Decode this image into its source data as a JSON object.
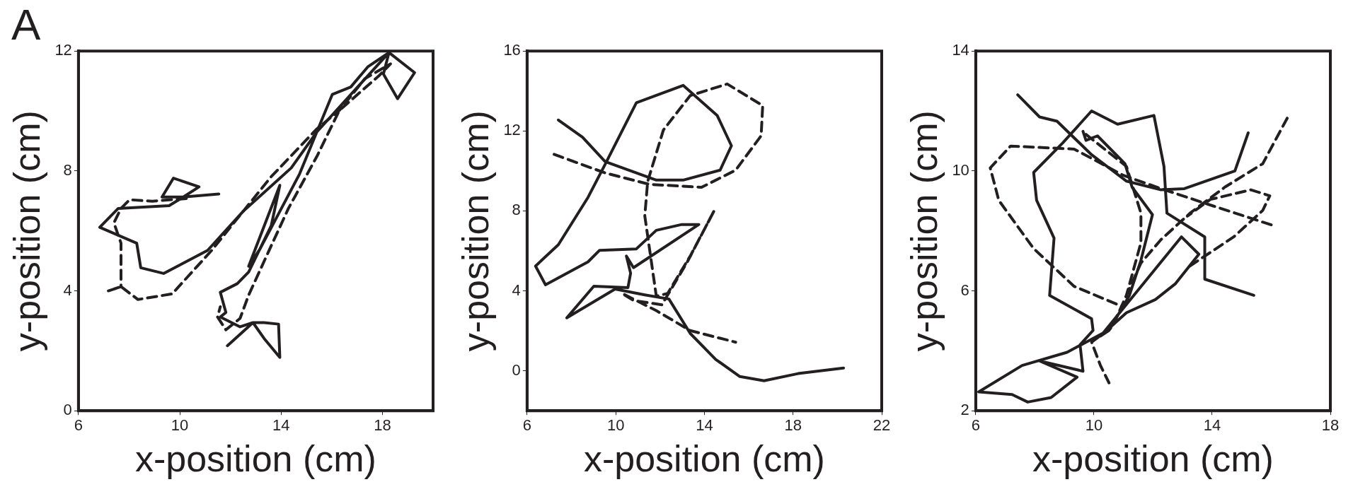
{
  "chart_data": [
    {
      "type": "line",
      "annotations": [
        "A"
      ],
      "xlabel": "x-position (cm)",
      "ylabel": "y-position (cm)",
      "xlim": [
        6,
        20
      ],
      "ylim": [
        0,
        12
      ],
      "xticks": [
        6,
        10,
        14,
        18
      ],
      "yticks": [
        0,
        4,
        8,
        12
      ],
      "series": [
        {
          "color": "#231f20",
          "line_style": "solid",
          "x": [
            11.54,
            10.14,
            10.76,
            9.75,
            9.3,
            10.14,
            9.58,
            7.57,
            6.84,
            8.3,
            8.46,
            9.36,
            11.1,
            12.5,
            14.4,
            15.41,
            16.02,
            16.75,
            17.42,
            18.26,
            19.27,
            18.6,
            18.04,
            18.26,
            15.41,
            14.73,
            13.95,
            13.17,
            12.72,
            13.95,
            13.61,
            12.72,
            12.27,
            11.6,
            11.82,
            11.6,
            12.38,
            12.89,
            13.33,
            13.9,
            13.95,
            13.33,
            12.89,
            11.88
          ],
          "values": [
            7.23,
            7.13,
            7.47,
            7.76,
            7.13,
            7.13,
            6.84,
            6.75,
            6.12,
            5.59,
            4.77,
            4.58,
            5.35,
            6.65,
            8.1,
            9.3,
            10.55,
            10.8,
            11.47,
            11.95,
            11.28,
            10.41,
            11.23,
            11.95,
            9.3,
            7.9,
            6.65,
            5.4,
            4.82,
            7.52,
            6.17,
            4.63,
            4.24,
            3.95,
            3.28,
            3.13,
            2.8,
            2.94,
            2.94,
            2.89,
            1.78,
            2.41,
            2.94,
            2.17
          ]
        },
        {
          "color": "#231f20",
          "line_style": "dashed",
          "x": [
            10.26,
            8.91,
            8.02,
            7.68,
            7.4,
            7.68,
            7.68,
            7.18,
            7.68,
            8.35,
            9.7,
            11.26,
            12.5,
            13.61,
            15.41,
            16.3,
            17.31,
            18.32,
            17.87,
            16.3,
            15.41,
            14.29,
            13.5,
            12.72,
            12.38,
            11.82,
            11.49,
            11.6
          ],
          "values": [
            7.08,
            6.99,
            7.04,
            6.75,
            6.27,
            5.59,
            4.14,
            4.0,
            4.14,
            3.71,
            3.9,
            5.35,
            6.65,
            7.81,
            9.4,
            10.02,
            11.08,
            11.57,
            11.18,
            10.02,
            8.48,
            6.75,
            5.3,
            3.86,
            3.08,
            2.7,
            3.13,
            3.47
          ]
        }
      ]
    },
    {
      "type": "line",
      "xlabel": "x-position (cm)",
      "ylabel": "y-position (cm)",
      "xlim": [
        6,
        22
      ],
      "ylim": [
        -2,
        16
      ],
      "xticks": [
        6,
        10,
        14,
        18,
        22
      ],
      "yticks": [
        0,
        4,
        8,
        12,
        16
      ],
      "series": [
        {
          "color": "#231f20",
          "line_style": "solid",
          "x": [
            7.41,
            8.5,
            9.52,
            11.83,
            13.04,
            14.71,
            15.22,
            14.58,
            13.04,
            10.93,
            9.52,
            8.75,
            7.41,
            6.38,
            6.83,
            8.75,
            9.27,
            10.93,
            11.83,
            12.98,
            13.75,
            10.8,
            10.48,
            10.67,
            10.55,
            9.01,
            7.79,
            9.97,
            11.31,
            12.4,
            13.36,
            14.51,
            15.6,
            16.69,
            18.23,
            20.28
          ],
          "values": [
            12.55,
            11.69,
            10.47,
            9.54,
            9.54,
            10.04,
            11.26,
            12.77,
            14.28,
            13.41,
            10.33,
            8.68,
            6.31,
            5.24,
            4.3,
            5.45,
            6.03,
            6.1,
            7.03,
            7.32,
            7.32,
            5.16,
            5.74,
            4.88,
            4.16,
            4.23,
            2.65,
            4.09,
            3.8,
            3.59,
            1.87,
            0.57,
            -0.29,
            -0.5,
            -0.14,
            0.14
          ]
        },
        {
          "color": "#231f20",
          "line_style": "dashed",
          "x": [
            7.22,
            9.52,
            11.51,
            13.87,
            15.41,
            16.56,
            16.63,
            15.03,
            13.36,
            12.15,
            11.44,
            11.31,
            11.57,
            11.83,
            12.34,
            13.36,
            14.45,
            13.23,
            12.08,
            10.8,
            10.29,
            11.83,
            13.36,
            15.41
          ],
          "values": [
            10.83,
            9.9,
            9.33,
            9.18,
            10.04,
            11.76,
            13.27,
            14.35,
            13.77,
            12.05,
            9.47,
            7.75,
            5.74,
            3.73,
            3.87,
            5.74,
            8.03,
            5.45,
            3.3,
            3.52,
            3.87,
            3.01,
            2.01,
            1.43
          ]
        }
      ]
    },
    {
      "type": "line",
      "xlabel": "x-position (cm)",
      "ylabel": "y-position (cm)",
      "xlim": [
        6,
        18
      ],
      "ylim": [
        2,
        14
      ],
      "xticks": [
        6,
        10,
        14,
        18
      ],
      "yticks": [
        2,
        6,
        10,
        14
      ],
      "series": [
        {
          "color": "#231f20",
          "line_style": "solid",
          "x": [
            15.22,
            14.77,
            13.06,
            12.27,
            11.1,
            9.92,
            8.75,
            8.16,
            7.42
          ],
          "values": [
            11.27,
            10.0,
            9.41,
            9.37,
            9.66,
            10.54,
            11.66,
            11.8,
            12.54
          ]
        },
        {
          "color": "#231f20",
          "line_style": "solid",
          "x": [
            9.63,
            9.73,
            10.12,
            11.05,
            11.29,
            11.98,
            11.59,
            11.2,
            10.51,
            10.22,
            11.1,
            12.08,
            12.76,
            13.55,
            12.96,
            10.31,
            9.09,
            7.57,
            6.1,
            7.23,
            7.76,
            8.55,
            9.43,
            8.16,
            9.63,
            9.53,
            9.97,
            9.92,
            8.5,
            8.65,
            8.06,
            7.96,
            8.94,
            9.92,
            10.8,
            12.03,
            12.37,
            12.47,
            13.75,
            13.75,
            15.41
          ],
          "values": [
            11.32,
            11.02,
            11.17,
            10.24,
            9.46,
            8.54,
            7.02,
            5.85,
            4.68,
            4.49,
            5.27,
            5.71,
            6.24,
            7.22,
            7.8,
            4.59,
            3.95,
            3.51,
            2.63,
            2.54,
            2.29,
            2.44,
            3.12,
            3.66,
            3.32,
            4.2,
            4.68,
            5.07,
            5.85,
            7.76,
            9.02,
            9.95,
            10.93,
            12.0,
            11.56,
            11.85,
            10.15,
            8.59,
            7.8,
            6.39,
            5.85
          ]
        },
        {
          "color": "#231f20",
          "line_style": "dashed",
          "x": [
            16.54,
            15.71,
            14.43,
            13.25,
            12.27,
            11.59,
            11.1,
            10.61,
            9.92,
            10.22,
            10.51
          ],
          "values": [
            11.76,
            10.24,
            9.46,
            8.59,
            7.71,
            6.93,
            5.85,
            4.78,
            4.29,
            3.51,
            2.93
          ]
        },
        {
          "color": "#231f20",
          "line_style": "dashed",
          "x": [
            16.0,
            14.04,
            12.27,
            11.0,
            9.33,
            7.18,
            6.49,
            6.78,
            7.96,
            9.33,
            11.0
          ],
          "values": [
            8.2,
            8.83,
            9.41,
            9.85,
            10.73,
            10.83,
            10.1,
            9.02,
            7.41,
            6.15,
            5.46
          ]
        },
        {
          "color": "#231f20",
          "line_style": "dashed",
          "x": [
            9.73,
            11.1,
            11.59,
            11.59,
            11.1
          ],
          "values": [
            11.22,
            10.15,
            8.59,
            7.61,
            5.85
          ]
        },
        {
          "color": "#231f20",
          "line_style": "dashed",
          "x": [
            13.25,
            14.73,
            15.71,
            15.95,
            15.31,
            13.94,
            13.16
          ],
          "values": [
            6.83,
            7.8,
            8.68,
            9.17,
            9.37,
            9.05,
            8.49
          ]
        }
      ]
    }
  ]
}
